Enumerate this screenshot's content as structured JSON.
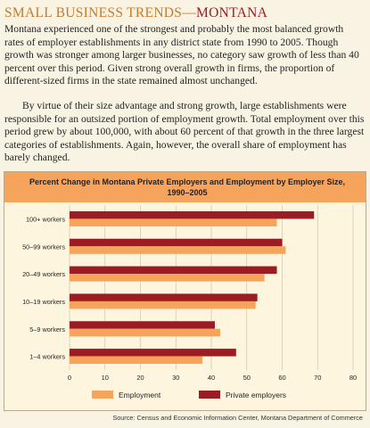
{
  "article": {
    "heading_prefix": "SMALL BUSINESS TRENDS—",
    "heading_state": "MONTANA",
    "paragraph1": "Montana experienced one of the strongest and probably the most balanced growth rates of employer establishments in any district state from 1990 to 2005. Though growth was stronger among larger businesses, no category saw growth of less than 40 percent over this period. Given strong overall growth in firms, the proportion of different-sized firms in the state remained almost unchanged.",
    "paragraph2": "By virtue of their size advantage and strong growth, large establishments were responsible for an outsized portion of employment growth. Total employment over this period grew by about 100,000, with about 60 percent of that growth in the three largest categories of establishments. Again, however, the overall share of employment has barely changed."
  },
  "chart_data": {
    "type": "bar",
    "orientation": "horizontal",
    "title_line1": "Percent Change in Montana Private Employers and Employment by Employer Size,",
    "title_line2": "1990–2005",
    "categories": [
      "100+ workers",
      "50–99 workers",
      "20–49 workers",
      "10–19 workers",
      "5–9 workers",
      "1–4 workers"
    ],
    "series": [
      {
        "name": "Private employers",
        "color": "#9b1c22",
        "values": [
          69,
          60,
          58.5,
          53,
          41,
          47
        ]
      },
      {
        "name": "Employment",
        "color": "#f6a45c",
        "values": [
          58.5,
          61,
          55,
          52.5,
          42.5,
          37.5
        ]
      }
    ],
    "xlim": [
      0,
      80
    ],
    "xticks": [
      "0",
      "10",
      "20",
      "30",
      "40",
      "50",
      "60",
      "70",
      "80"
    ],
    "grid": true,
    "legend_position": "bottom",
    "legend_order": [
      "Employment",
      "Private employers"
    ]
  },
  "source": "Source: Census and Economic Information Center, Montana Department of Commerce",
  "colors": {
    "page_background": "#f8f3e2",
    "heading": "#c77a2c",
    "state_accent": "#9b1c22",
    "chart_header": "#f6a45c"
  }
}
